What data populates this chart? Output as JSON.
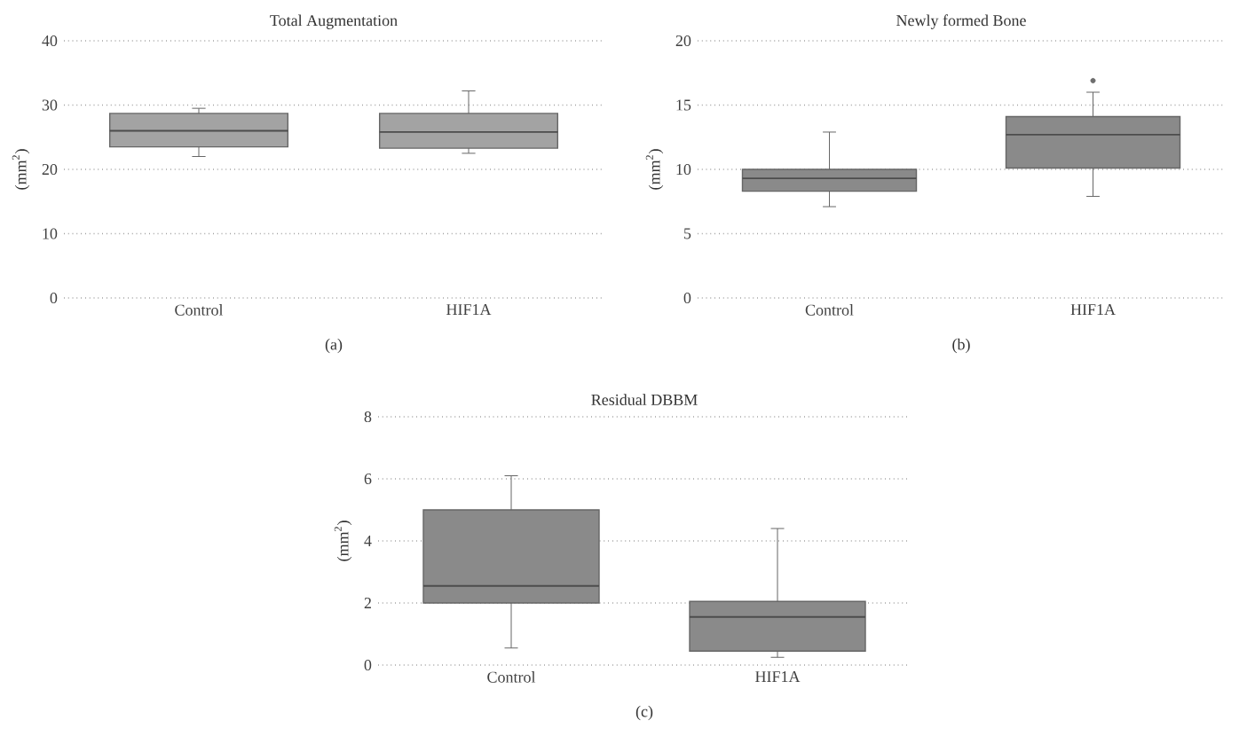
{
  "chart_data": [
    {
      "type": "box",
      "title": "Total Augmentation",
      "ylabel": "(mm$^{2}$)",
      "categories": [
        "Control",
        "HIF1A"
      ],
      "color": "#a3a3a3",
      "grid": "y",
      "ylim": [
        0,
        40
      ],
      "yticks": [
        0,
        10,
        20,
        30,
        40
      ],
      "annotations": [
        "(a)"
      ],
      "boxes": [
        {
          "low": 22,
          "q1": 23.5,
          "median": 26,
          "q3": 28.7,
          "high": 29.5
        },
        {
          "low": 22.5,
          "q1": 23.3,
          "median": 25.8,
          "q3": 28.7,
          "high": 32.2
        }
      ]
    },
    {
      "type": "box",
      "title": "Newly formed Bone",
      "ylabel": "(mm$^{2}$)",
      "categories": [
        "Control",
        "HIF1A"
      ],
      "color": "#8a8a8a",
      "grid": "y",
      "ylim": [
        0,
        20
      ],
      "yticks": [
        0,
        5,
        10,
        15,
        20
      ],
      "annotations": [
        "(b)"
      ],
      "boxes": [
        {
          "low": 7.1,
          "q1": 8.3,
          "median": 9.3,
          "q3": 10.0,
          "high": 12.9
        },
        {
          "low": 7.9,
          "q1": 10.1,
          "median": 12.7,
          "q3": 14.1,
          "high": 16.0,
          "outliers": [
            16.9
          ]
        }
      ]
    },
    {
      "type": "box",
      "title": "Residual DBBM",
      "ylabel": "(mm$^{2}$)",
      "categories": [
        "Control",
        "HIF1A"
      ],
      "color": "#8a8a8a",
      "grid": "y",
      "ylim": [
        0,
        8
      ],
      "yticks": [
        0,
        2,
        4,
        6,
        8
      ],
      "annotations": [
        "(c)"
      ],
      "boxes": [
        {
          "low": 0.55,
          "q1": 2.0,
          "median": 2.55,
          "q3": 5.0,
          "high": 6.1
        },
        {
          "low": 0.25,
          "q1": 0.45,
          "median": 1.55,
          "q3": 2.05,
          "high": 4.4
        }
      ]
    }
  ]
}
